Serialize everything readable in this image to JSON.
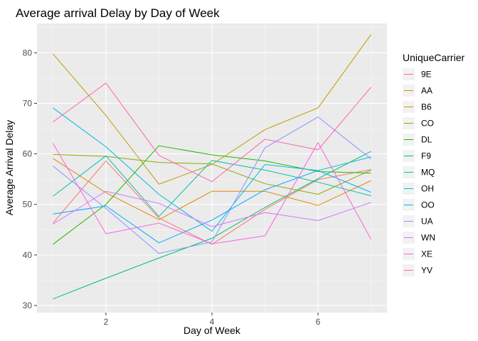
{
  "chart_data": {
    "type": "line",
    "title": "Average arrival Delay by Day of Week",
    "xlabel": "Day of Week",
    "ylabel": "Average Arrival Delay",
    "xlim": [
      0.7,
      7.3
    ],
    "ylim": [
      28.6,
      85.8
    ],
    "x_ticks": [
      2,
      4,
      6
    ],
    "y_ticks": [
      30,
      40,
      50,
      60,
      70,
      80
    ],
    "grid": true,
    "legend_position": "right",
    "legend_title": "UniqueCarrier",
    "x": [
      1,
      2,
      3,
      4,
      5,
      6,
      7
    ],
    "series": [
      {
        "name": "9E",
        "color": "#F8766D",
        "values": [
          46.3,
          58.6,
          47.3,
          42.1,
          49.0,
          54.9,
          56.9
        ]
      },
      {
        "name": "AA",
        "color": "#E18A00",
        "values": [
          59.1,
          52.3,
          47.0,
          52.6,
          52.6,
          49.8,
          54.7
        ]
      },
      {
        "name": "B6",
        "color": "#BE9C00",
        "values": [
          79.8,
          67.6,
          54.0,
          57.9,
          64.8,
          69.1,
          83.6
        ]
      },
      {
        "name": "CO",
        "color": "#8CAB00",
        "values": [
          59.9,
          59.5,
          58.3,
          58.0,
          54.1,
          52.0,
          56.8
        ]
      },
      {
        "name": "DL",
        "color": "#24B700",
        "values": [
          42.1,
          50.0,
          61.6,
          59.8,
          58.6,
          56.5,
          56.2
        ]
      },
      {
        "name": "F9",
        "color": "#00BE70",
        "values": [
          31.3,
          35.4,
          39.4,
          43.3,
          49.4,
          55.1,
          60.5
        ]
      },
      {
        "name": "MQ",
        "color": "#00C1AB",
        "values": [
          51.6,
          59.6,
          47.6,
          58.7,
          56.8,
          54.4,
          51.7
        ]
      },
      {
        "name": "OH",
        "color": "#00BBDA",
        "values": [
          69.1,
          61.4,
          52.0,
          44.7,
          57.9,
          56.7,
          59.4
        ]
      },
      {
        "name": "OO",
        "color": "#00ACFC",
        "values": [
          48.1,
          49.7,
          42.4,
          46.9,
          52.9,
          56.7,
          52.4
        ]
      },
      {
        "name": "UA",
        "color": "#8B93FF",
        "values": [
          57.6,
          49.2,
          40.3,
          42.6,
          61.2,
          67.3,
          59.0
        ]
      },
      {
        "name": "WN",
        "color": "#D575FE",
        "values": [
          46.1,
          52.6,
          50.2,
          45.6,
          48.4,
          46.8,
          50.4
        ]
      },
      {
        "name": "XE",
        "color": "#F962DD",
        "values": [
          62.1,
          44.2,
          46.3,
          42.2,
          43.8,
          62.2,
          43.1
        ]
      },
      {
        "name": "YV",
        "color": "#FF65AC",
        "values": [
          66.3,
          74.0,
          59.7,
          54.5,
          62.9,
          60.8,
          73.2
        ]
      }
    ]
  }
}
